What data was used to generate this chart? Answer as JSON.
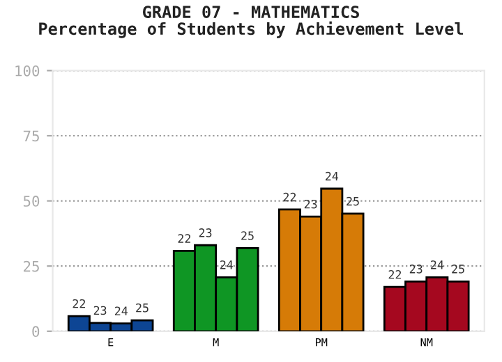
{
  "chart_data": {
    "type": "bar",
    "title": "GRADE 07 - MATHEMATICS\nPercentage of Students by Achievement Level",
    "categories": [
      "E",
      "M",
      "PM",
      "NM"
    ],
    "series": [
      {
        "name": "22",
        "colors": [
          "#0d4594",
          "#0f9624",
          "#d67b07",
          "#a5081f"
        ],
        "values": [
          5.8,
          30.8,
          46.7,
          17
        ]
      },
      {
        "name": "23",
        "colors": [
          "#0d4594",
          "#0f9624",
          "#d67b07",
          "#a5081f"
        ],
        "values": [
          3.2,
          33,
          44,
          19.1
        ]
      },
      {
        "name": "24",
        "colors": [
          "#0d4594",
          "#0f9624",
          "#d67b07",
          "#a5081f"
        ],
        "values": [
          3,
          20.7,
          54.7,
          20.7
        ]
      },
      {
        "name": "25",
        "colors": [
          "#0d4594",
          "#0f9624",
          "#d67b07",
          "#a5081f"
        ],
        "values": [
          4.2,
          31.9,
          45.1,
          19.1
        ]
      }
    ],
    "ylim": [
      0,
      100
    ],
    "yticks": [
      0,
      25,
      50,
      75,
      100
    ],
    "grid": "y"
  }
}
